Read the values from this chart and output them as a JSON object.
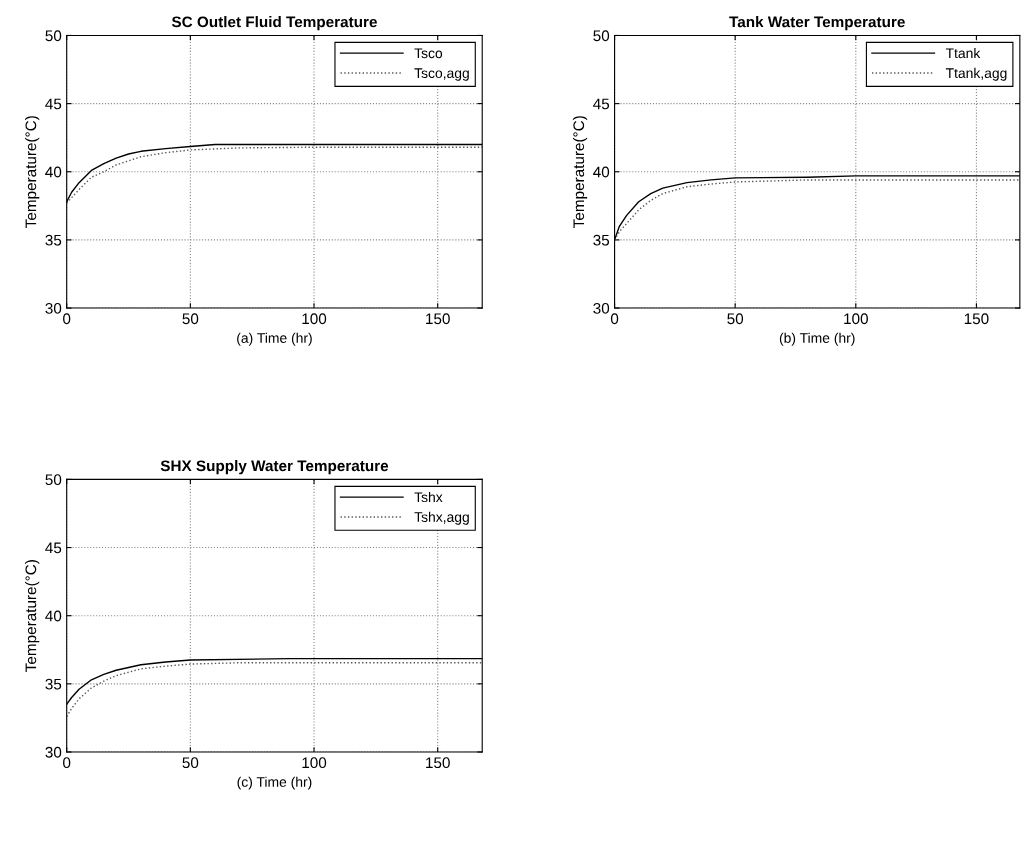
{
  "chart_data": [
    {
      "type": "line",
      "title": "SC Outlet Fluid Temperature",
      "xlabel": "(a) Time (hr)",
      "ylabel": "Temperature(°C)",
      "xlim": [
        0,
        168
      ],
      "xticks": [
        0,
        50,
        100,
        150
      ],
      "ylim": [
        30,
        50
      ],
      "yticks": [
        30,
        35,
        40,
        45,
        50
      ],
      "grid": true,
      "legend": "top right",
      "series": [
        {
          "name": "Tsco",
          "color": "#000000",
          "line_style": "solid",
          "x": [
            0,
            2,
            5,
            10,
            15,
            20,
            25,
            30,
            40,
            50,
            60,
            80,
            120,
            168
          ],
          "values": [
            37.8,
            38.5,
            39.2,
            40.1,
            40.6,
            41.0,
            41.3,
            41.5,
            41.7,
            41.85,
            42.0,
            42.0,
            42.0,
            42.0
          ]
        },
        {
          "name": "Tsco,agg",
          "color": "#555555",
          "line_style": "dotted",
          "x": [
            0,
            2,
            5,
            10,
            15,
            20,
            25,
            30,
            40,
            50,
            70,
            100,
            168
          ],
          "values": [
            37.7,
            38.1,
            38.7,
            39.6,
            40.0,
            40.5,
            40.8,
            41.1,
            41.4,
            41.6,
            41.75,
            41.8,
            41.8
          ]
        }
      ]
    },
    {
      "type": "line",
      "title": "Tank Water Temperature",
      "xlabel": "(b) Time (hr)",
      "ylabel": "Temperature(°C)",
      "xlim": [
        0,
        168
      ],
      "xticks": [
        0,
        50,
        100,
        150
      ],
      "ylim": [
        30,
        50
      ],
      "yticks": [
        30,
        35,
        40,
        45,
        50
      ],
      "grid": true,
      "legend": "top right",
      "series": [
        {
          "name": "Ttank",
          "color": "#000000",
          "line_style": "solid",
          "x": [
            0,
            2,
            5,
            10,
            15,
            20,
            30,
            40,
            50,
            80,
            100,
            168
          ],
          "values": [
            35.0,
            36.0,
            36.8,
            37.8,
            38.4,
            38.8,
            39.2,
            39.4,
            39.55,
            39.6,
            39.7,
            39.7
          ]
        },
        {
          "name": "Ttank,agg",
          "color": "#555555",
          "line_style": "dotted",
          "x": [
            0,
            2,
            5,
            10,
            15,
            20,
            30,
            40,
            50,
            60,
            80,
            168
          ],
          "values": [
            35.0,
            35.6,
            36.2,
            37.2,
            37.9,
            38.4,
            38.9,
            39.1,
            39.25,
            39.3,
            39.4,
            39.4
          ]
        }
      ]
    },
    {
      "type": "line",
      "title": "SHX Supply Water Temperature",
      "xlabel": "(c) Time (hr)",
      "ylabel": "Temperature(°C)",
      "xlim": [
        0,
        168
      ],
      "xticks": [
        0,
        50,
        100,
        150
      ],
      "ylim": [
        30,
        50
      ],
      "yticks": [
        30,
        35,
        40,
        45,
        50
      ],
      "grid": true,
      "legend": "top right",
      "series": [
        {
          "name": "Tshx",
          "color": "#000000",
          "line_style": "solid",
          "x": [
            0,
            2,
            5,
            10,
            15,
            20,
            30,
            40,
            50,
            90,
            168
          ],
          "values": [
            33.5,
            34.0,
            34.6,
            35.3,
            35.7,
            36.0,
            36.4,
            36.6,
            36.75,
            36.85,
            36.85
          ]
        },
        {
          "name": "Tshx,agg",
          "color": "#555555",
          "line_style": "dotted",
          "x": [
            0,
            2,
            5,
            10,
            15,
            20,
            30,
            40,
            50,
            70,
            168
          ],
          "values": [
            32.6,
            33.2,
            33.9,
            34.7,
            35.2,
            35.6,
            36.1,
            36.3,
            36.45,
            36.55,
            36.55
          ]
        }
      ]
    }
  ]
}
